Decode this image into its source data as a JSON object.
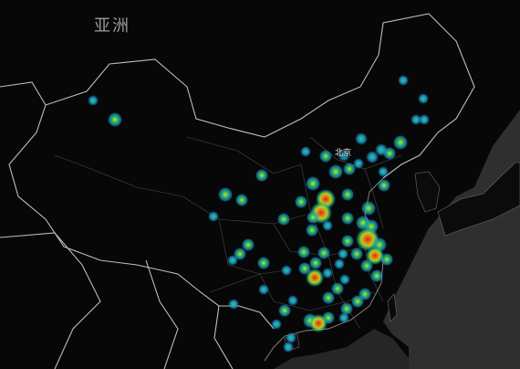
{
  "map": {
    "continent_label": "亚洲",
    "city_label": "北京",
    "theme": {
      "land": "#0a0a0a",
      "sea": "#2f2f2f",
      "country_border": "#bdbdbd",
      "province_border": "#4a4a4a"
    },
    "heat_gradient": [
      "#1e9bd7",
      "#1fc07a",
      "#d7e01b",
      "#e8871a",
      "#d7261b"
    ]
  }
}
